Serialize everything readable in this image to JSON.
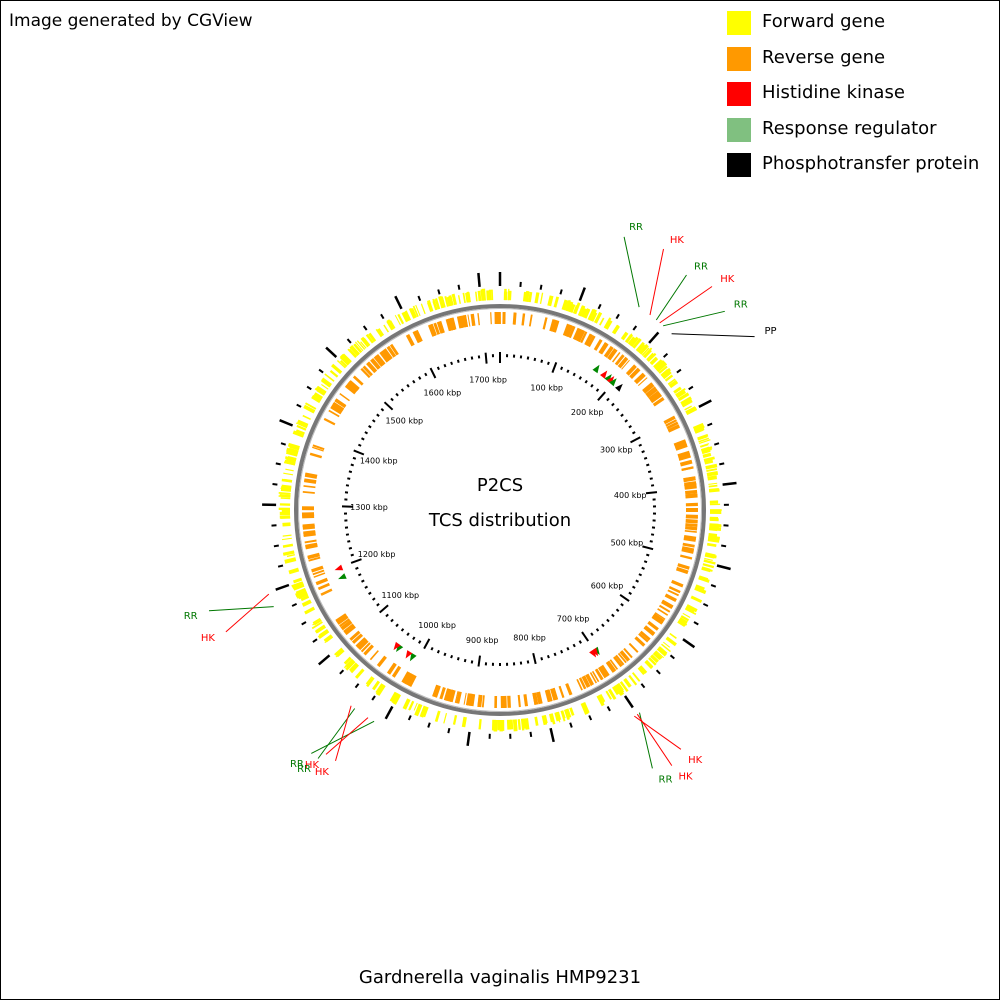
{
  "header": {
    "credit": "Image generated by CGView"
  },
  "footer": {
    "organism": "Gardnerella vaginalis HMP9231"
  },
  "center": {
    "line1": "P2CS",
    "line2": "TCS distribution"
  },
  "legend": [
    {
      "label": "Forward gene",
      "color": "#ffff00"
    },
    {
      "label": "Reverse gene",
      "color": "#ff9900"
    },
    {
      "label": "Histidine kinase",
      "color": "#ff0000"
    },
    {
      "label": "Response regulator",
      "color": "#80c080"
    },
    {
      "label": "Phosphotransfer protein",
      "color": "#000000"
    }
  ],
  "genome": {
    "length_kbp": 1725,
    "tick_labels": [
      "100 kbp",
      "200 kbp",
      "300 kbp",
      "400 kbp",
      "500 kbp",
      "600 kbp",
      "700 kbp",
      "800 kbp",
      "900 kbp",
      "1000 kbp",
      "1100 kbp",
      "1200 kbp",
      "1300 kbp",
      "1400 kbp",
      "1500 kbp",
      "1600 kbp",
      "1700 kbp"
    ]
  },
  "features": [
    {
      "type": "RR",
      "position_kbp": 165
    },
    {
      "type": "HK",
      "position_kbp": 180
    },
    {
      "type": "RR",
      "position_kbp": 189
    },
    {
      "type": "HK",
      "position_kbp": 194
    },
    {
      "type": "RR",
      "position_kbp": 199
    },
    {
      "type": "PP",
      "position_kbp": 212
    },
    {
      "type": "RR",
      "position_kbp": 697
    },
    {
      "type": "HK",
      "position_kbp": 700
    },
    {
      "type": "HK",
      "position_kbp": 704
    },
    {
      "type": "RR",
      "position_kbp": 1010
    },
    {
      "type": "HK",
      "position_kbp": 1018
    },
    {
      "type": "RR",
      "position_kbp": 1036
    },
    {
      "type": "HK",
      "position_kbp": 1041
    },
    {
      "type": "RR",
      "position_kbp": 1183
    },
    {
      "type": "HK",
      "position_kbp": 1198
    }
  ],
  "label_colors": {
    "HK": "#ff0000",
    "RR": "#007700",
    "PP": "#000000"
  }
}
